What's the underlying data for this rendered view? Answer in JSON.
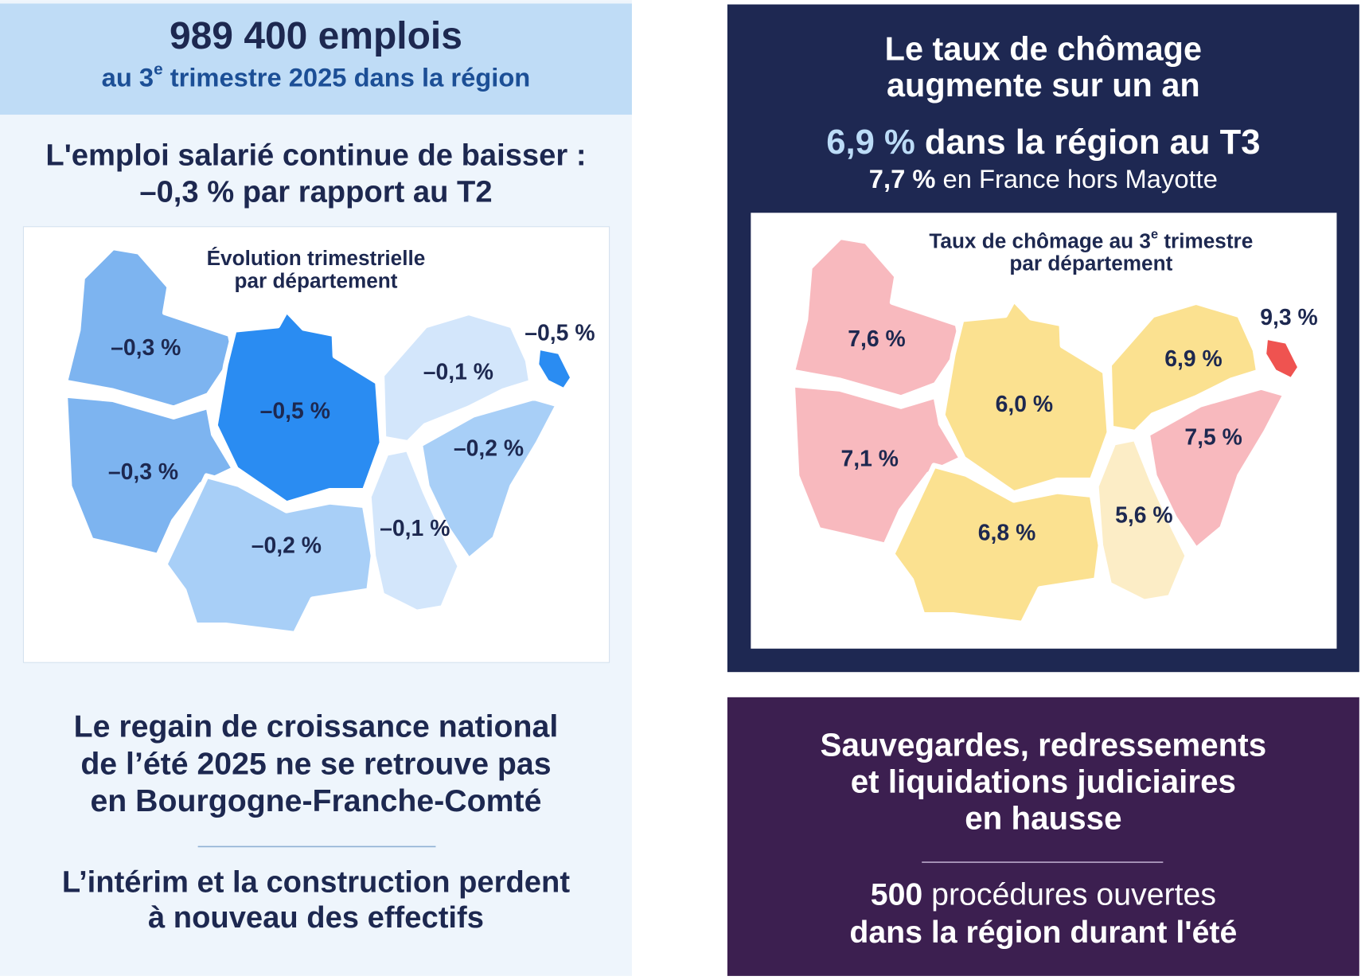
{
  "employment": {
    "headline": "989 400 emplois",
    "subtitle_parts": [
      "au 3",
      "e",
      " trimestre 2025 dans la région"
    ],
    "heading_lines": [
      "L'emploi salarié continue de baisser :",
      "–0,3 % par rapport au T2"
    ],
    "map": {
      "title_lines": [
        "Évolution trimestrielle",
        "par département"
      ],
      "departments": [
        {
          "label": "–0,3 %",
          "color": "#7db4f0"
        },
        {
          "label": "–0,3 %",
          "color": "#7db4f0"
        },
        {
          "label": "–0,5 %",
          "color": "#2a8cf2"
        },
        {
          "label": "–0,2 %",
          "color": "#a8cff7"
        },
        {
          "label": "–0,1 %",
          "color": "#d3e6fb"
        },
        {
          "label": "–0,5 %",
          "color": "#2a8cf2"
        },
        {
          "label": "–0,2 %",
          "color": "#a8cff7"
        },
        {
          "label": "–0,1 %",
          "color": "#d3e6fb"
        }
      ]
    },
    "growth_lines": [
      "Le regain de croissance national",
      "de l’été 2025 ne se retrouve pas",
      "en Bourgogne-Franche-Comté"
    ],
    "sector_lines": [
      "L’intérim et la construction perdent",
      "à nouveau des effectifs"
    ]
  },
  "unemployment": {
    "heading_lines": [
      "Le taux de chômage",
      "augmente sur un an"
    ],
    "regional_rate": "6,9 %",
    "regional_text": " dans la région au T3",
    "national_rate": "7,7 %",
    "national_text": " en France hors Mayotte",
    "map": {
      "title_parts": [
        "Taux de chômage au 3",
        "e",
        " trimestre"
      ],
      "title_line2": "par département",
      "departments": [
        {
          "label": "7,6 %",
          "color": "#f8b9be"
        },
        {
          "label": "7,1 %",
          "color": "#f8b9be"
        },
        {
          "label": "6,0 %",
          "color": "#fbe190"
        },
        {
          "label": "6,8 %",
          "color": "#fbe190"
        },
        {
          "label": "6,9 %",
          "color": "#fbe190"
        },
        {
          "label": "9,3 %",
          "color": "#ef5350"
        },
        {
          "label": "7,5 %",
          "color": "#f8b9be"
        },
        {
          "label": "5,6 %",
          "color": "#fcedc6"
        }
      ]
    }
  },
  "insolvency": {
    "heading_lines": [
      "Sauvegardes, redressements",
      "et liquidations judiciaires",
      "en hausse"
    ],
    "count": "500",
    "count_text": " procédures ouvertes",
    "line2": "dans la région durant l'été"
  }
}
